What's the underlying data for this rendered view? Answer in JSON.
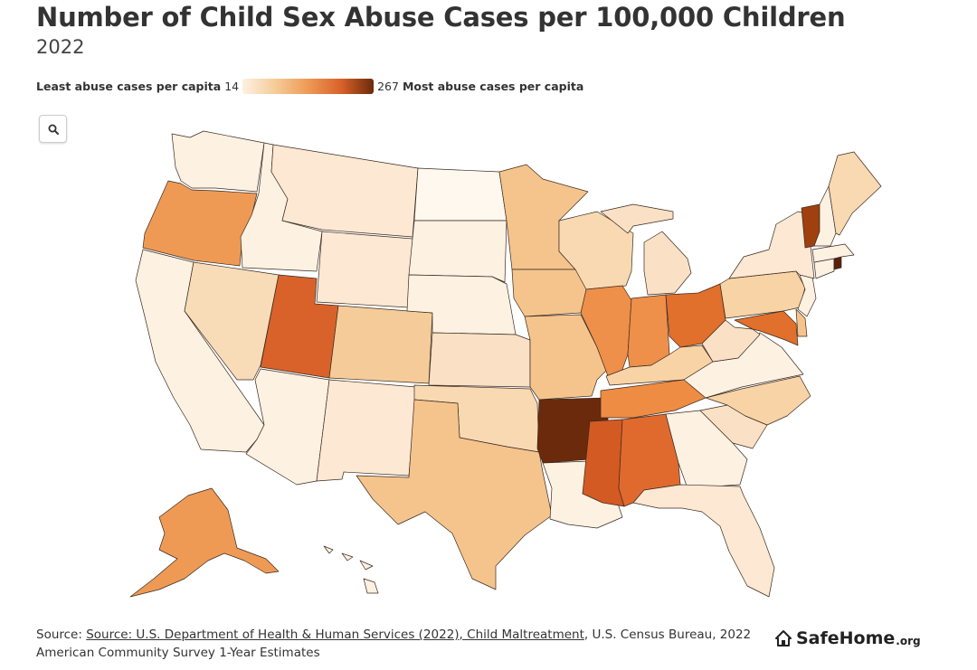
{
  "title": "Number of Child Sex Abuse Cases per 100,000 Children",
  "subtitle": "2022",
  "legend": {
    "low_label": "Least abuse cases per capita",
    "low_value": "14",
    "high_value": "267",
    "high_label": "Most abuse cases per capita",
    "colors": [
      "#fdf1e2",
      "#f5cc99",
      "#ee9a55",
      "#d9622a",
      "#6b2a0b"
    ]
  },
  "zoom_button": {
    "icon": "search-icon"
  },
  "footer": {
    "prefix": "Source: ",
    "link_text": "Source: U.S. Department of Health & Human Services (2022), Child Maltreatment",
    "suffix": ", U.S. Census Bureau, 2022",
    "line2": "American Community Survey 1-Year Estimates"
  },
  "brand": {
    "name": "SafeHome",
    "tld": ".org",
    "icon": "house-icon"
  },
  "states": [
    {
      "id": "WA",
      "color": "#fdf1e2"
    },
    {
      "id": "OR",
      "color": "#ee9a55"
    },
    {
      "id": "CA",
      "color": "#fdf1e2"
    },
    {
      "id": "ID",
      "color": "#fdf1e2"
    },
    {
      "id": "NV",
      "color": "#f8dcb8"
    },
    {
      "id": "MT",
      "color": "#fce8d3"
    },
    {
      "id": "WY",
      "color": "#fce8d3"
    },
    {
      "id": "UT",
      "color": "#d9622a"
    },
    {
      "id": "AZ",
      "color": "#fdf1e2"
    },
    {
      "id": "CO",
      "color": "#f5cc99"
    },
    {
      "id": "NM",
      "color": "#fce8d3"
    },
    {
      "id": "ND",
      "color": "#fff8ef"
    },
    {
      "id": "SD",
      "color": "#fdf1e2"
    },
    {
      "id": "NE",
      "color": "#fdf1e2"
    },
    {
      "id": "KS",
      "color": "#fae0c4"
    },
    {
      "id": "OK",
      "color": "#f8d9b2"
    },
    {
      "id": "TX",
      "color": "#f5c48c"
    },
    {
      "id": "MN",
      "color": "#f5c48c"
    },
    {
      "id": "IA",
      "color": "#f5c48c"
    },
    {
      "id": "MO",
      "color": "#f5c48c"
    },
    {
      "id": "AR",
      "color": "#6b2a0b"
    },
    {
      "id": "LA",
      "color": "#fdf1e2"
    },
    {
      "id": "WI",
      "color": "#f8d9b2"
    },
    {
      "id": "IL",
      "color": "#ee8f4a"
    },
    {
      "id": "MI",
      "color": "#fae0c4"
    },
    {
      "id": "IN",
      "color": "#ee8f4a"
    },
    {
      "id": "OH",
      "color": "#e0702c"
    },
    {
      "id": "KY",
      "color": "#f8d3a6"
    },
    {
      "id": "TN",
      "color": "#ee8c44"
    },
    {
      "id": "MS",
      "color": "#d35a22"
    },
    {
      "id": "AL",
      "color": "#e06a2e"
    },
    {
      "id": "GA",
      "color": "#fdf1e2"
    },
    {
      "id": "FL",
      "color": "#fce8d3"
    },
    {
      "id": "SC",
      "color": "#fae0c4"
    },
    {
      "id": "NC",
      "color": "#f8d3a6"
    },
    {
      "id": "VA",
      "color": "#fdf1e2"
    },
    {
      "id": "WV",
      "color": "#fae0c4"
    },
    {
      "id": "PA",
      "color": "#f8d3a6"
    },
    {
      "id": "NY",
      "color": "#fce8d3"
    },
    {
      "id": "NJ",
      "color": "#fdf1e2"
    },
    {
      "id": "MD",
      "color": "#e0702c"
    },
    {
      "id": "DE",
      "color": "#f5c48c"
    },
    {
      "id": "VT",
      "color": "#a0400f"
    },
    {
      "id": "NH",
      "color": "#fdf1e2"
    },
    {
      "id": "ME",
      "color": "#f8d9b2"
    },
    {
      "id": "MA",
      "color": "#fdf1e2"
    },
    {
      "id": "CT",
      "color": "#fdf1e2"
    },
    {
      "id": "RI",
      "color": "#5a200a"
    },
    {
      "id": "AK",
      "color": "#ee9a55"
    },
    {
      "id": "HI",
      "color": "#fdf1e2"
    }
  ]
}
